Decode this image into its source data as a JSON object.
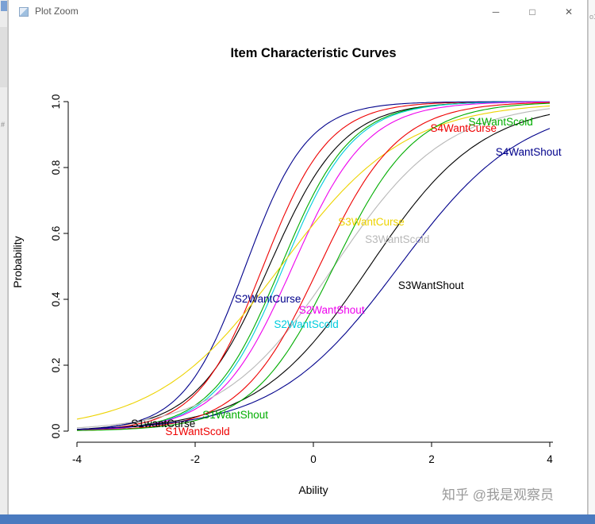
{
  "window": {
    "title": "Plot Zoom",
    "controls": [
      {
        "name": "minimize",
        "glyph": "─"
      },
      {
        "name": "maximize",
        "glyph": "□"
      },
      {
        "name": "close",
        "glyph": "✕"
      }
    ]
  },
  "desktop": {
    "left_edge_glyph": "#",
    "right_edge_text": "o1",
    "taskbar_color": "#4a7abf"
  },
  "watermark": {
    "text": "知乎 @我是观察员",
    "color": "#9a9a9a"
  },
  "chart_data": {
    "type": "line",
    "title": "Item Characteristic Curves",
    "xlabel": "Ability",
    "ylabel": "Probability",
    "xlim": [
      -4,
      4
    ],
    "ylim": [
      0,
      1
    ],
    "x_ticks": [
      -4,
      -2,
      0,
      2,
      4
    ],
    "y_tick_labels": [
      "0.0",
      "0.2",
      "0.4",
      "0.6",
      "0.8",
      "1.0"
    ],
    "grid": false,
    "legend": "labels-placed-on-curves",
    "model": "2PL logistic: P(ability) = 1 / (1 + exp(-a * (ability - b)))",
    "x_samples": [
      -4,
      -3,
      -2,
      -1,
      0,
      1,
      2,
      3,
      4
    ],
    "series": [
      {
        "name": "S1wantCurse",
        "color": "#000000",
        "a": 1.6,
        "b": -0.75,
        "values": [
          0.006,
          0.027,
          0.119,
          0.401,
          0.769,
          0.943,
          0.988,
          0.998,
          1.0
        ],
        "label": {
          "x": -2.54,
          "y": 0.012
        }
      },
      {
        "name": "S1WantScold",
        "color": "#EE0000",
        "a": 1.8,
        "b": -0.85,
        "values": [
          0.003,
          0.021,
          0.112,
          0.433,
          0.822,
          0.965,
          0.994,
          0.999,
          1.0
        ],
        "label": {
          "x": -1.96,
          "y": -0.012
        }
      },
      {
        "name": "S1WantShout",
        "color": "#00AD00",
        "a": 1.7,
        "b": -0.55,
        "values": [
          0.003,
          0.015,
          0.078,
          0.318,
          0.718,
          0.933,
          0.987,
          0.998,
          1.0
        ],
        "label": {
          "x": -1.32,
          "y": 0.038
        }
      },
      {
        "name": "S2WantCurse",
        "color": "#00008B",
        "a": 1.9,
        "b": -1.15,
        "values": [
          0.004,
          0.029,
          0.166,
          0.571,
          0.899,
          0.983,
          0.998,
          1.0,
          1.0
        ],
        "label": {
          "x": -0.77,
          "y": 0.39
        }
      },
      {
        "name": "S2WantScold",
        "color": "#00CCDD",
        "a": 1.7,
        "b": -0.5,
        "values": [
          0.003,
          0.014,
          0.072,
          0.3,
          0.7,
          0.928,
          0.986,
          0.997,
          0.999
        ],
        "label": {
          "x": -0.12,
          "y": 0.313
        }
      },
      {
        "name": "S2WantShout",
        "color": "#EE00EE",
        "a": 1.6,
        "b": -0.35,
        "values": [
          0.003,
          0.014,
          0.067,
          0.261,
          0.636,
          0.897,
          0.977,
          0.995,
          0.999
        ],
        "label": {
          "x": 0.31,
          "y": 0.357
        }
      },
      {
        "name": "S3WantCurse",
        "color": "#EDD300",
        "a": 0.95,
        "b": -0.55,
        "values": [
          0.036,
          0.089,
          0.201,
          0.395,
          0.628,
          0.813,
          0.918,
          0.967,
          0.987
        ],
        "label": {
          "x": 0.98,
          "y": 0.624
        }
      },
      {
        "name": "S3WantScold",
        "color": "#B8B8B8",
        "a": 1.05,
        "b": 0.35,
        "values": [
          0.01,
          0.029,
          0.078,
          0.195,
          0.409,
          0.664,
          0.85,
          0.942,
          0.979
        ],
        "label": {
          "x": 1.42,
          "y": 0.571
        }
      },
      {
        "name": "S3WantShout",
        "color": "#000000",
        "a": 1.05,
        "b": 0.95,
        "values": [
          0.006,
          0.016,
          0.043,
          0.114,
          0.269,
          0.513,
          0.751,
          0.896,
          0.961
        ],
        "label": {
          "x": 1.99,
          "y": 0.431
        }
      },
      {
        "name": "S4WantCurse",
        "color": "#EE0000",
        "a": 1.5,
        "b": 0.1,
        "values": [
          0.002,
          0.01,
          0.041,
          0.161,
          0.463,
          0.794,
          0.945,
          0.987,
          0.997
        ],
        "label": {
          "x": 2.54,
          "y": 0.908
        }
      },
      {
        "name": "S4WantScold",
        "color": "#00AD00",
        "a": 1.45,
        "b": 0.35,
        "values": [
          0.002,
          0.008,
          0.032,
          0.124,
          0.376,
          0.72,
          0.916,
          0.979,
          0.995
        ],
        "label": {
          "x": 3.17,
          "y": 0.928
        }
      },
      {
        "name": "S4WantShout",
        "color": "#00008B",
        "a": 0.95,
        "b": 1.45,
        "values": [
          0.006,
          0.014,
          0.036,
          0.089,
          0.201,
          0.395,
          0.628,
          0.813,
          0.918
        ],
        "label": {
          "x": 3.64,
          "y": 0.836
        }
      }
    ]
  }
}
